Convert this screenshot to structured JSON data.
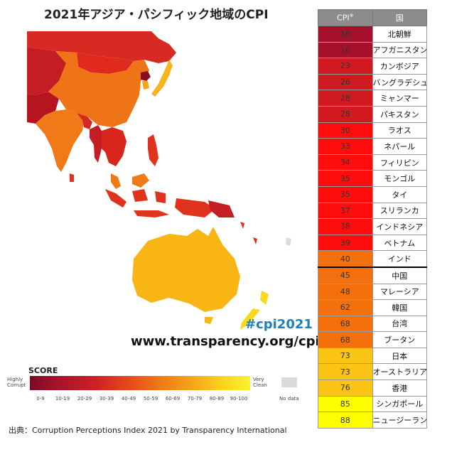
{
  "title": "2021年アジア・パシフィック地域のCPI",
  "map": {
    "hashtag": "#cpi2021",
    "website": "www.transparency.org/cpi"
  },
  "legend": {
    "title": "SCORE",
    "low_label": "Highly Corrupt",
    "high_label": "Very Clean",
    "no_data_label": "No data",
    "ticks": [
      "0-9",
      "10-19",
      "20-29",
      "30-39",
      "40-49",
      "50-59",
      "60-69",
      "70-79",
      "80-89",
      "90-100"
    ]
  },
  "source": "出典：Corruption Perceptions Index 2021 by Transparency International",
  "table": {
    "header_cpi": "CPI",
    "header_cpi_note": "※",
    "header_country": "国",
    "rows": [
      {
        "score": "16",
        "country": "北朝鮮",
        "color": "#a5112a"
      },
      {
        "score": "16",
        "country": "アフガニスタン",
        "color": "#a5112a"
      },
      {
        "score": "23",
        "country": "カンボジア",
        "color": "#d01a20"
      },
      {
        "score": "26",
        "country": "バングラデシュ",
        "color": "#d01a20"
      },
      {
        "score": "28",
        "country": "ミャンマー",
        "color": "#d01a20"
      },
      {
        "score": "28",
        "country": "パキスタン",
        "color": "#d01a20"
      },
      {
        "score": "30",
        "country": "ラオス",
        "color": "#ff0d0d"
      },
      {
        "score": "33",
        "country": "ネパール",
        "color": "#ff0d0d"
      },
      {
        "score": "34",
        "country": "フィリピン",
        "color": "#ff0d0d"
      },
      {
        "score": "35",
        "country": "モンゴル",
        "color": "#ff0d0d"
      },
      {
        "score": "35",
        "country": "タイ",
        "color": "#ff0d0d"
      },
      {
        "score": "37",
        "country": "スリランカ",
        "color": "#ff0d0d"
      },
      {
        "score": "38",
        "country": "インドネシア",
        "color": "#ff0d0d"
      },
      {
        "score": "39",
        "country": "ベトナム",
        "color": "#ff0d0d"
      },
      {
        "score": "40",
        "country": "インド",
        "color": "#f4700d"
      },
      {
        "score": "45",
        "country": "中国",
        "color": "#f4700d"
      },
      {
        "score": "48",
        "country": "マレーシア",
        "color": "#f4700d"
      },
      {
        "score": "62",
        "country": "韓国",
        "color": "#f4700d"
      },
      {
        "score": "68",
        "country": "台湾",
        "color": "#f4700d"
      },
      {
        "score": "68",
        "country": "ブータン",
        "color": "#f4700d"
      },
      {
        "score": "73",
        "country": "日本",
        "color": "#fcc515"
      },
      {
        "score": "73",
        "country": "オーストラリア",
        "color": "#fcc515"
      },
      {
        "score": "76",
        "country": "香港",
        "color": "#fcc515"
      },
      {
        "score": "85",
        "country": "シンガポール",
        "color": "#ffff00"
      },
      {
        "score": "88",
        "country": "ニュージーランド",
        "color": "#ffff00"
      }
    ]
  }
}
